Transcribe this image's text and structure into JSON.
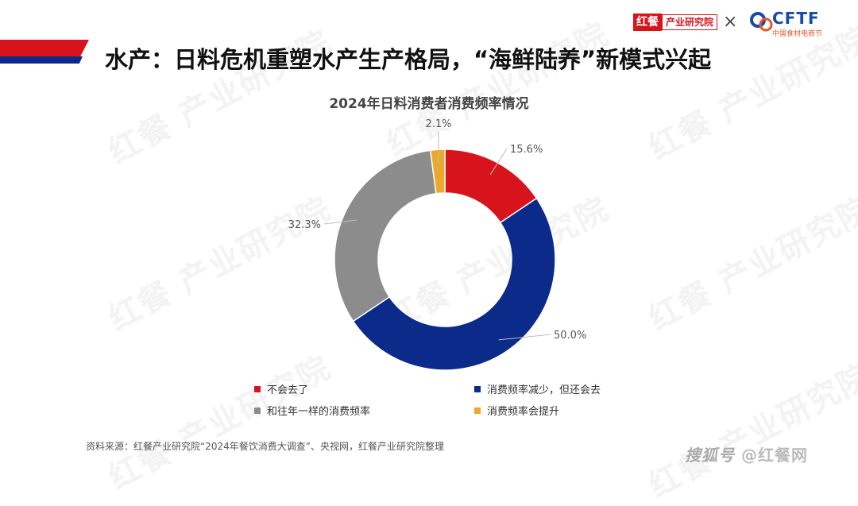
{
  "header": {
    "title": "水产：日料危机重塑水产生产格局，“海鲜陆养”新模式兴起",
    "logo_hongcan": "红餐",
    "logo_institute": "产业研究院",
    "times": "×",
    "cftf_word": "CFTF",
    "cftf_sub": "中国食材电商节"
  },
  "watermark_text": "红餐 产业研究院",
  "chart_data": {
    "type": "donut",
    "title": "2024年日料消费者消费频率情况",
    "slices": [
      {
        "label": "不会去了",
        "value": 15.6,
        "display": "15.6%",
        "color": "#d7141c"
      },
      {
        "label": "消费频率减少，但还会去",
        "value": 50.0,
        "display": "50.0%",
        "color": "#0b2a8a"
      },
      {
        "label": "和往年一样的消费频率",
        "value": 32.3,
        "display": "32.3%",
        "color": "#8c8c8c"
      },
      {
        "label": "消费频率会提升",
        "value": 2.1,
        "display": "2.1%",
        "color": "#e9a92c"
      }
    ],
    "legend_order": [
      0,
      1,
      2,
      3
    ]
  },
  "footer": {
    "source": "资料来源：红餐产业研究院“2024年餐饮消费大调查”、央视网，红餐产业研究院整理",
    "brand_prefix": "搜狐号",
    "brand_suffix": "@红餐网"
  }
}
